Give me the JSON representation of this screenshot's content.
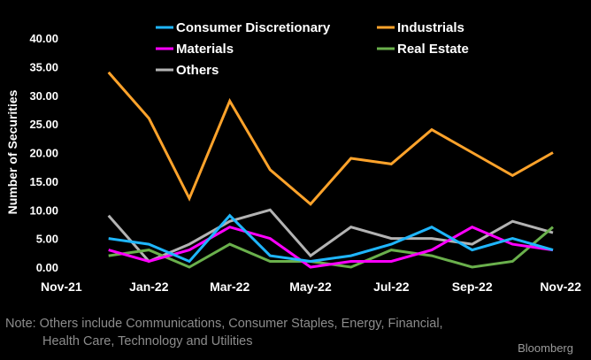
{
  "chart_data": {
    "type": "line",
    "ylabel": "Number of Securities",
    "ylim": [
      0,
      40
    ],
    "yticks": [
      "0.00",
      "5.00",
      "10.00",
      "15.00",
      "20.00",
      "25.00",
      "30.00",
      "35.00",
      "40.00"
    ],
    "xlim": [
      "2021-11",
      "2022-11"
    ],
    "xticks": [
      "Nov-21",
      "Jan-22",
      "Mar-22",
      "May-22",
      "Jul-22",
      "Sep-22",
      "Nov-22"
    ],
    "x": [
      "2021-12",
      "2022-01",
      "2022-02",
      "2022-03",
      "2022-04",
      "2022-05",
      "2022-06",
      "2022-07",
      "2022-08",
      "2022-09",
      "2022-10",
      "2022-11"
    ],
    "grid": false,
    "legend": "top",
    "series": [
      {
        "name": "Consumer Discretionary",
        "color": "#1fb6ff",
        "values": [
          5,
          4,
          1,
          9,
          2,
          1,
          2,
          4,
          7,
          3,
          5,
          3
        ]
      },
      {
        "name": "Industrials",
        "color": "#ffa32b",
        "values": [
          34,
          26,
          12,
          29,
          17,
          11,
          19,
          18,
          24,
          20,
          16,
          20
        ]
      },
      {
        "name": "Materials",
        "color": "#ff00ff",
        "values": [
          3,
          1,
          3,
          7,
          5,
          0,
          1,
          1,
          3,
          7,
          4,
          3
        ]
      },
      {
        "name": "Real Estate",
        "color": "#6ab04c",
        "values": [
          2,
          3,
          0,
          4,
          1,
          1,
          0,
          3,
          2,
          0,
          1,
          7
        ]
      },
      {
        "name": "Others",
        "color": "#b3b3b3",
        "values": [
          9,
          1,
          4,
          8,
          10,
          2,
          7,
          5,
          5,
          4,
          8,
          6
        ]
      }
    ]
  },
  "note": {
    "line1": "Note: Others include Communications, Consumer Staples, Energy, Financial,",
    "line2": "Health Care, Technology and Utilities"
  },
  "brand": "Bloomberg"
}
